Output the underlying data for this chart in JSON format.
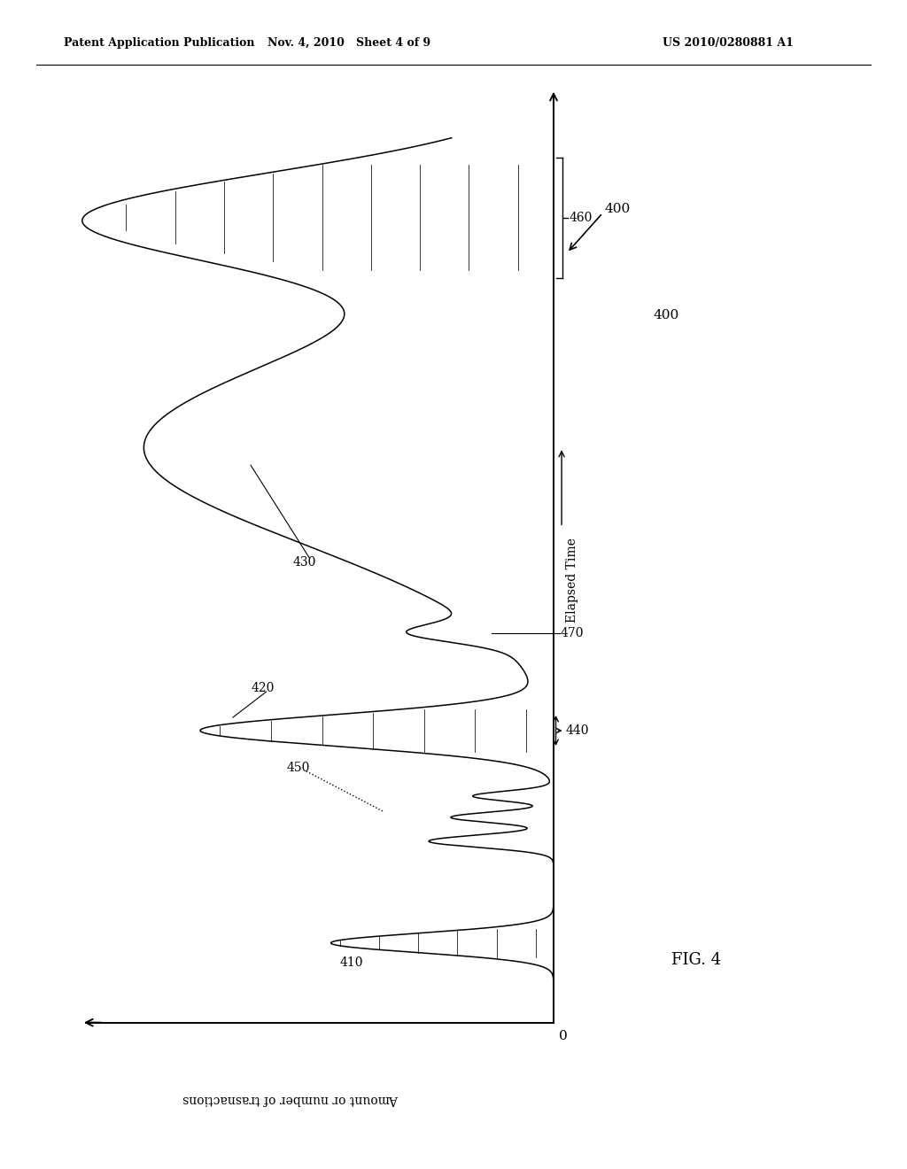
{
  "bg_color": "#ffffff",
  "header_left": "Patent Application Publication",
  "header_mid": "Nov. 4, 2010   Sheet 4 of 9",
  "header_right": "US 2010/0280881 A1",
  "fig_label": "FIG. 4",
  "ylabel": "Amount or number of trasnactions",
  "xlabel": "Elapsed Time",
  "label_400": "400",
  "label_410": "410",
  "label_420": "420",
  "label_430": "430",
  "label_440": "440",
  "label_450": "450",
  "label_460": "460",
  "label_470": "470",
  "axis_zero": "0"
}
